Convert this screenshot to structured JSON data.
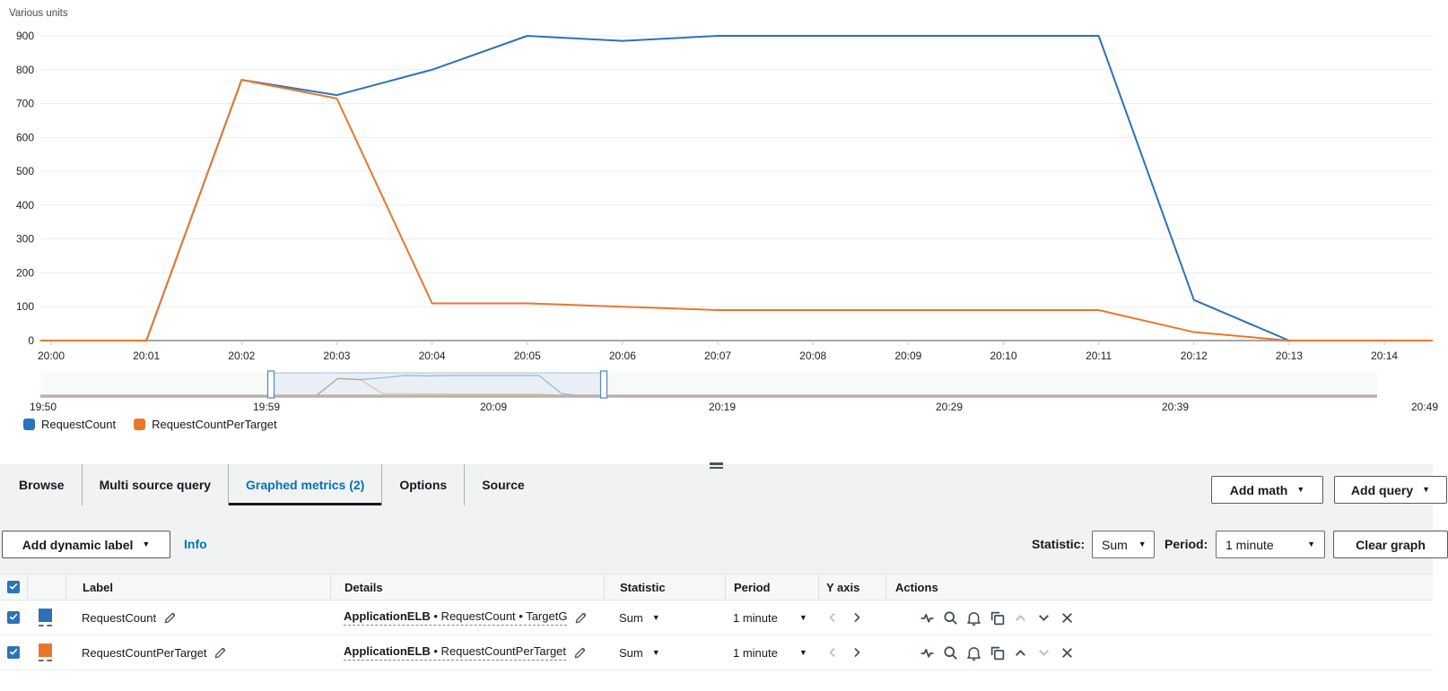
{
  "chart_data": {
    "type": "line",
    "title": "Various units",
    "x": [
      "20:00",
      "20:01",
      "20:02",
      "20:03",
      "20:04",
      "20:05",
      "20:06",
      "20:07",
      "20:08",
      "20:09",
      "20:10",
      "20:11",
      "20:12",
      "20:13",
      "20:14"
    ],
    "series": [
      {
        "name": "RequestCount",
        "color": "#2d72b8",
        "values": [
          0,
          0,
          770,
          725,
          800,
          900,
          885,
          900,
          900,
          900,
          900,
          900,
          120,
          0,
          0
        ]
      },
      {
        "name": "RequestCountPerTarget",
        "color": "#e8772d",
        "values": [
          0,
          0,
          770,
          715,
          110,
          110,
          100,
          90,
          90,
          90,
          90,
          90,
          25,
          0,
          0
        ]
      }
    ],
    "ylim": [
      0,
      900
    ],
    "yticks": [
      0,
      100,
      200,
      300,
      400,
      500,
      600,
      700,
      800,
      900
    ],
    "grid": true,
    "legend_position": "bottom-left"
  },
  "brush": {
    "labels": [
      "19:50",
      "19:59",
      "20:09",
      "20:19",
      "20:29",
      "20:39",
      "20:49"
    ],
    "selection_start": "19:59",
    "selection_end": "20:14"
  },
  "tabs": [
    {
      "label": "Browse",
      "active": false
    },
    {
      "label": "Multi source query",
      "active": false
    },
    {
      "label": "Graphed metrics (2)",
      "active": true
    },
    {
      "label": "Options",
      "active": false
    },
    {
      "label": "Source",
      "active": false
    }
  ],
  "toolbar": {
    "add_math": "Add math",
    "add_query": "Add query"
  },
  "controls": {
    "add_dynamic_label": "Add dynamic label",
    "info": "Info",
    "statistic_label": "Statistic:",
    "statistic_value": "Sum",
    "period_label": "Period:",
    "period_value": "1 minute",
    "clear_graph": "Clear graph"
  },
  "table": {
    "header_checked": true,
    "headers": [
      "Label",
      "Details",
      "Statistic",
      "Period",
      "Y axis",
      "Actions"
    ],
    "rows": [
      {
        "checked": true,
        "color": "#2d72b8",
        "label": "RequestCount",
        "details_bold": "ApplicationELB",
        "details_rest": " • RequestCount • TargetG",
        "statistic": "Sum",
        "period": "1 minute",
        "yaxis_left_enabled": false,
        "yaxis_right_enabled": true,
        "move_up_enabled": false,
        "move_down_enabled": true
      },
      {
        "checked": true,
        "color": "#e8772d",
        "label": "RequestCountPerTarget",
        "details_bold": "ApplicationELB",
        "details_rest": " • RequestCountPerTarget",
        "statistic": "Sum",
        "period": "1 minute",
        "yaxis_left_enabled": false,
        "yaxis_right_enabled": true,
        "move_up_enabled": true,
        "move_down_enabled": false
      }
    ]
  },
  "icons": {
    "caret_down": "▼"
  }
}
